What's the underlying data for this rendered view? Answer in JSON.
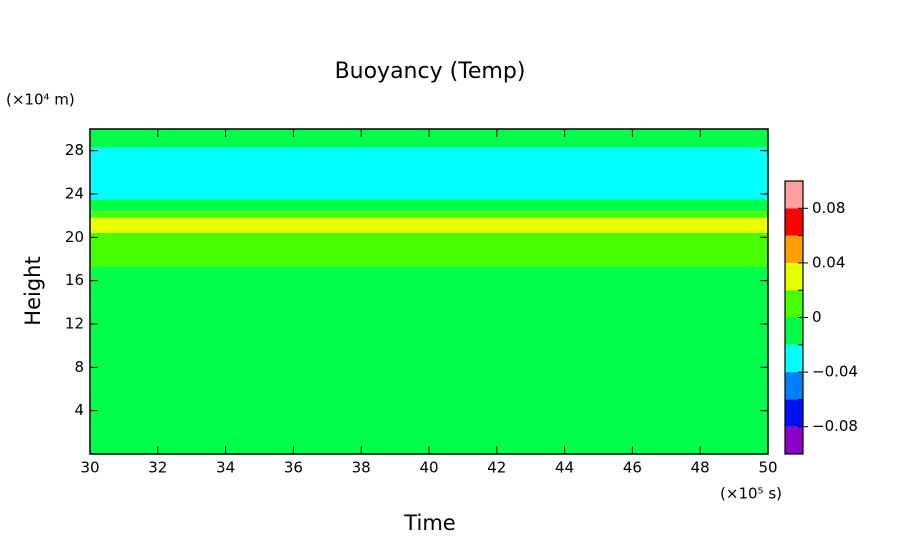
{
  "chart_data": {
    "type": "contour",
    "title": "Buoyancy (Temp)",
    "x_label": "Time",
    "y_label": "Height",
    "x_unit": "(×10⁵ s)",
    "y_unit": "(×10⁴ m)",
    "xlim": [
      30,
      50
    ],
    "ylim": [
      0,
      30
    ],
    "xticks": [
      30,
      32,
      34,
      36,
      38,
      40,
      42,
      44,
      46,
      48,
      50
    ],
    "yticks": [
      4,
      8,
      12,
      16,
      20,
      24,
      28
    ],
    "y_edges": [
      0,
      17.3,
      20.4,
      21.8,
      22.4,
      23.5,
      28.3,
      30
    ],
    "z": [
      -0.01,
      0.01,
      0.03,
      0.01,
      -0.01,
      -0.03,
      -0.01
    ],
    "levels": [
      -0.1,
      -0.08,
      -0.06,
      -0.04,
      -0.02,
      0,
      0.02,
      0.04,
      0.06,
      0.08,
      0.1
    ],
    "colors": [
      "#8a00c8",
      "#0010f0",
      "#0080ff",
      "#00ffff",
      "#00ff48",
      "#48ff00",
      "#e8ff00",
      "#ffa000",
      "#ff0000",
      "#ffa0a0"
    ],
    "colorbar_ticks": [
      {
        "value": -0.08,
        "label": "−0.08"
      },
      {
        "value": -0.04,
        "label": "−0.04"
      },
      0,
      0.04,
      0.08
    ]
  }
}
